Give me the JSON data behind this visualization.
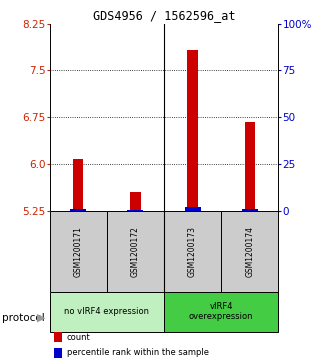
{
  "title": "GDS4956 / 1562596_at",
  "samples": [
    "GSM1200171",
    "GSM1200172",
    "GSM1200173",
    "GSM1200174"
  ],
  "red_values": [
    6.09,
    5.55,
    7.83,
    6.68
  ],
  "blue_values": [
    5.285,
    5.275,
    5.31,
    5.28
  ],
  "ymin": 5.25,
  "ymax": 8.25,
  "yticks_left": [
    5.25,
    6.0,
    6.75,
    7.5,
    8.25
  ],
  "yticks_right": [
    0,
    25,
    50,
    75,
    100
  ],
  "yticks_right_labels": [
    "0",
    "25",
    "50",
    "75",
    "100%"
  ],
  "grid_values": [
    6.0,
    6.75,
    7.5
  ],
  "groups": [
    {
      "label": "no vIRF4 expression",
      "cols": [
        0,
        1
      ],
      "color": "#c0f0c0"
    },
    {
      "label": "vIRF4\noverexpression",
      "cols": [
        2,
        3
      ],
      "color": "#44cc44"
    }
  ],
  "red_color": "#cc0000",
  "blue_color": "#0000cc",
  "gray_color": "#cccccc",
  "legend_items": [
    {
      "color": "#cc0000",
      "label": "count"
    },
    {
      "color": "#0000cc",
      "label": "percentile rank within the sample"
    }
  ],
  "protocol_label": "protocol",
  "left_ytick_color": "#cc2200",
  "right_ytick_color": "#0000cc"
}
